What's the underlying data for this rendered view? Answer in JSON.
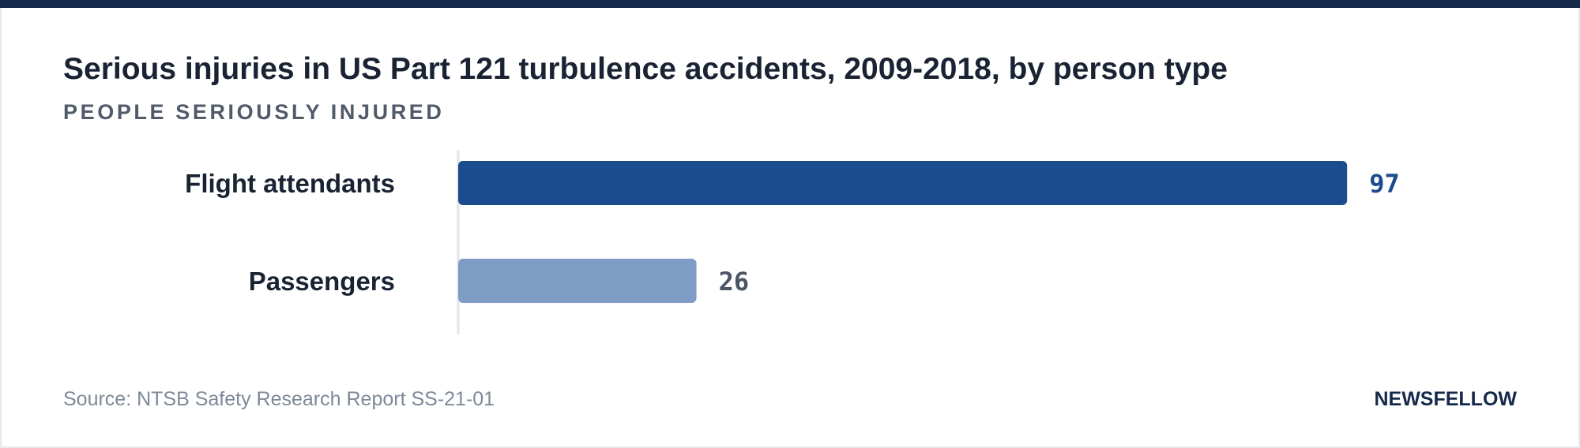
{
  "chart_data": {
    "type": "bar",
    "orientation": "horizontal",
    "title": "Serious injuries in US Part 121 turbulence accidents, 2009-2018, by person type",
    "subtitle": "PEOPLE SERIOUSLY INJURED",
    "categories": [
      "Flight attendants",
      "Passengers"
    ],
    "values": [
      97,
      26
    ],
    "bar_colors": [
      "#1b4d8e",
      "#7f9cc5"
    ],
    "value_label_colors": [
      "#1b4d8e",
      "#4b5566"
    ],
    "xlim": [
      0,
      100
    ],
    "grid": false,
    "legend": "none"
  },
  "footer": {
    "source": "Source: NTSB Safety Research Report SS-21-01",
    "brand": "NEWSFELLOW"
  },
  "colors": {
    "top_bar": "#15294a",
    "title": "#1a2333",
    "subtitle": "#505a69",
    "axis": "#e1e5ea"
  }
}
